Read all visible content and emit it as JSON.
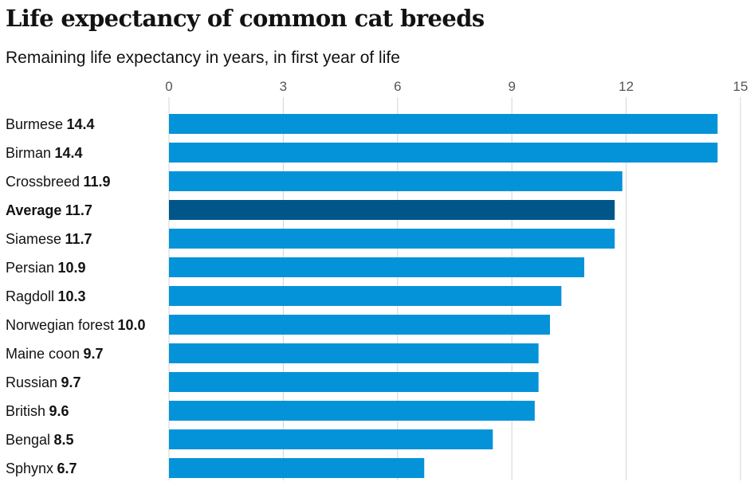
{
  "header": {
    "title": "Life expectancy of common cat breeds",
    "subtitle": "Remaining life expectancy in years, in first year of life"
  },
  "colors": {
    "bar": "#0493d9",
    "highlight_bar": "#005689",
    "gridline": "#d4d4d4",
    "tick_text": "#555555",
    "text": "#121212"
  },
  "chart_data": {
    "type": "bar",
    "orientation": "horizontal",
    "title": "Life expectancy of common cat breeds",
    "subtitle": "Remaining life expectancy in years, in first year of life",
    "categories": [
      "Burmese",
      "Birman",
      "Crossbreed",
      "Average",
      "Siamese",
      "Persian",
      "Ragdoll",
      "Norwegian forest",
      "Maine coon",
      "Russian",
      "British",
      "Bengal",
      "Sphynx"
    ],
    "values": [
      14.4,
      14.4,
      11.9,
      11.7,
      11.7,
      10.9,
      10.3,
      10.0,
      9.7,
      9.7,
      9.6,
      8.5,
      6.7
    ],
    "value_labels": [
      "14.4",
      "14.4",
      "11.9",
      "11.7",
      "11.7",
      "10.9",
      "10.3",
      "10.0",
      "9.7",
      "9.7",
      "9.6",
      "8.5",
      "6.7"
    ],
    "highlight": "Average",
    "xlim": [
      0,
      15
    ],
    "xticks": [
      "0",
      "3",
      "6",
      "9",
      "12",
      "15"
    ],
    "axis_position": "top",
    "grid": true
  }
}
